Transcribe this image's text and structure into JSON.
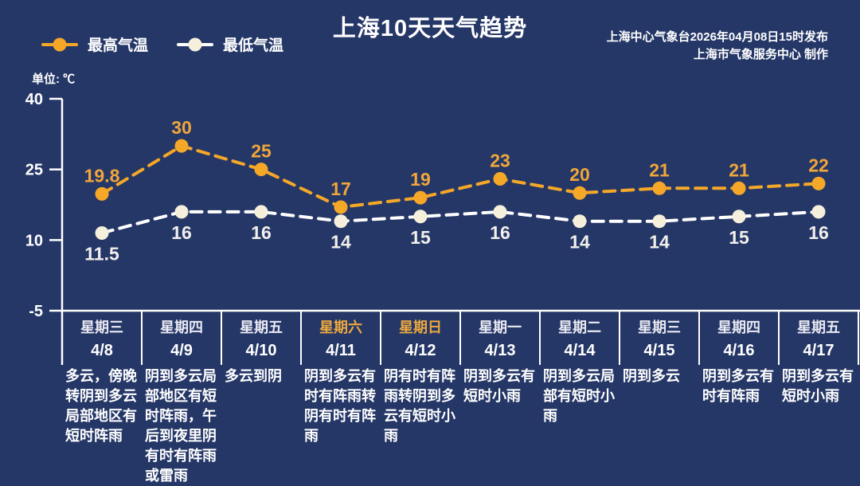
{
  "header": {
    "title": "上海10天天气趋势",
    "publisher_line1": "上海中心气象台2026年04月08日15时发布",
    "publisher_line2": "上海市气象服务中心  制作"
  },
  "legend": {
    "high_label": "最高气温",
    "low_label": "最低气温"
  },
  "unit_label": "单位: ℃",
  "colors": {
    "background": "#253767",
    "high_temp": "#F5A728",
    "high_value_text": "#F0A63A",
    "low_temp_marker": "#F6EFDC",
    "low_temp_line": "#FFFFFF",
    "low_value_text": "#F2F0EC",
    "weekend_text": "#EDA83E",
    "weekday_text": "#E9E9F2",
    "white_text": "#FFFFFF",
    "axis": "#FFFFFF"
  },
  "chart_data": {
    "type": "line",
    "title": "上海10天天气趋势",
    "unit": "℃",
    "ylim": [
      -5,
      40
    ],
    "yticks": [
      40,
      25,
      10,
      -5
    ],
    "grid": false,
    "legend_position": "top-left",
    "x_categories": [
      "4/8",
      "4/9",
      "4/10",
      "4/11",
      "4/12",
      "4/13",
      "4/14",
      "4/15",
      "4/16",
      "4/17"
    ],
    "series": [
      {
        "key": "high-temp",
        "name": "最高气温",
        "values": [
          19.8,
          30,
          25,
          17,
          19,
          23,
          20,
          21,
          21,
          22
        ],
        "line_style": "dashed",
        "line_color": "#F5A728",
        "marker_color": "#F5A728",
        "label_color": "#F0A63A",
        "label_position": "above"
      },
      {
        "key": "low-temp",
        "name": "最低气温",
        "values": [
          11.5,
          16,
          16,
          14,
          15,
          16,
          14,
          14,
          15,
          16
        ],
        "line_style": "dashed",
        "line_color": "#FFFFFF",
        "marker_color": "#F6EFDC",
        "label_color": "#F2F0EC",
        "label_position": "below"
      }
    ]
  },
  "days": [
    {
      "weekday": "星期三",
      "date": "4/8",
      "weekend": false,
      "description": "多云，傍晚转阴到多云局部地区有短时阵雨"
    },
    {
      "weekday": "星期四",
      "date": "4/9",
      "weekend": false,
      "description": "阴到多云局部地区有短时阵雨，午后到夜里阴有时有阵雨或雷雨"
    },
    {
      "weekday": "星期五",
      "date": "4/10",
      "weekend": false,
      "description": "多云到阴"
    },
    {
      "weekday": "星期六",
      "date": "4/11",
      "weekend": true,
      "description": "阴到多云有时有阵雨转阴有时有阵雨"
    },
    {
      "weekday": "星期日",
      "date": "4/12",
      "weekend": true,
      "description": "阴有时有阵雨转阴到多云有短时小雨"
    },
    {
      "weekday": "星期一",
      "date": "4/13",
      "weekend": false,
      "description": "阴到多云有短时小雨"
    },
    {
      "weekday": "星期二",
      "date": "4/14",
      "weekend": false,
      "description": "阴到多云局部有短时小雨"
    },
    {
      "weekday": "星期三",
      "date": "4/15",
      "weekend": false,
      "description": "阴到多云"
    },
    {
      "weekday": "星期四",
      "date": "4/16",
      "weekend": false,
      "description": "阴到多云有时有阵雨"
    },
    {
      "weekday": "星期五",
      "date": "4/17",
      "weekend": false,
      "description": "阴到多云有短时小雨"
    }
  ]
}
